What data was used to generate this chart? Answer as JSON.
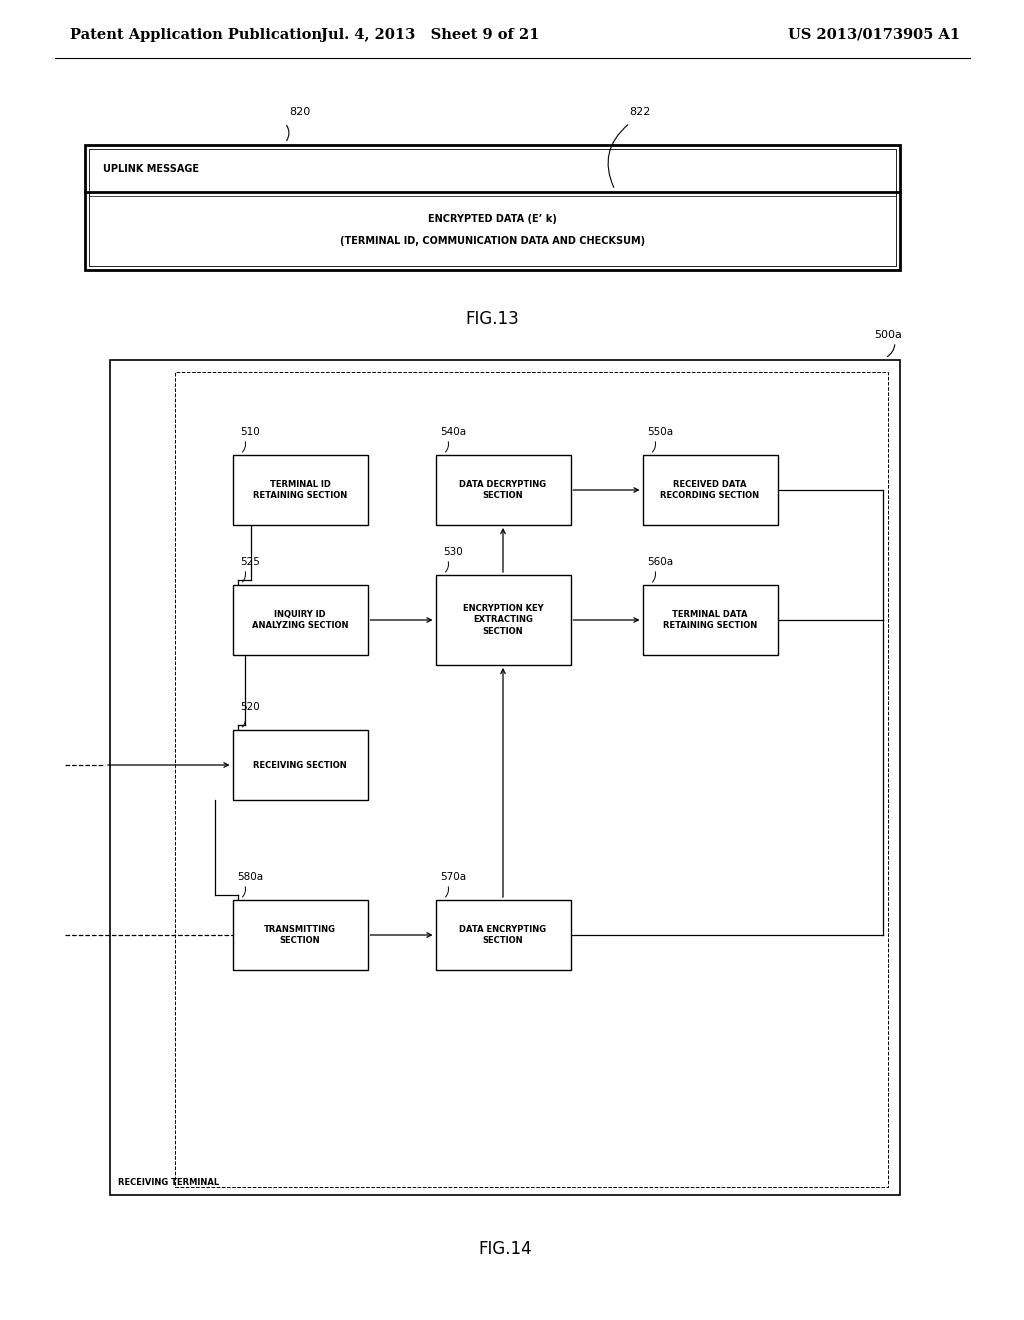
{
  "header_left": "Patent Application Publication",
  "header_mid": "Jul. 4, 2013   Sheet 9 of 21",
  "header_right": "US 2013/0173905 A1",
  "fig13_label": "FIG.13",
  "fig14_label": "FIG.14",
  "fig13": {
    "label_820": "820",
    "label_822": "822",
    "row1_text": "UPLINK MESSAGE",
    "row2_line1": "ENCRYPTED DATA (E’ k)",
    "row2_line2": "(TERMINAL ID, COMMUNICATION DATA AND CHECKSUM)"
  },
  "fig14": {
    "outer_box_label": "500a",
    "inner_box_label": "RECEIVING TERMINAL"
  },
  "bg_color": "#ffffff",
  "text_color": "#000000",
  "font_size_header": 10.5,
  "font_size_small": 7.0,
  "font_size_id": 8.0,
  "font_size_fig": 12,
  "font_size_box": 6.0
}
